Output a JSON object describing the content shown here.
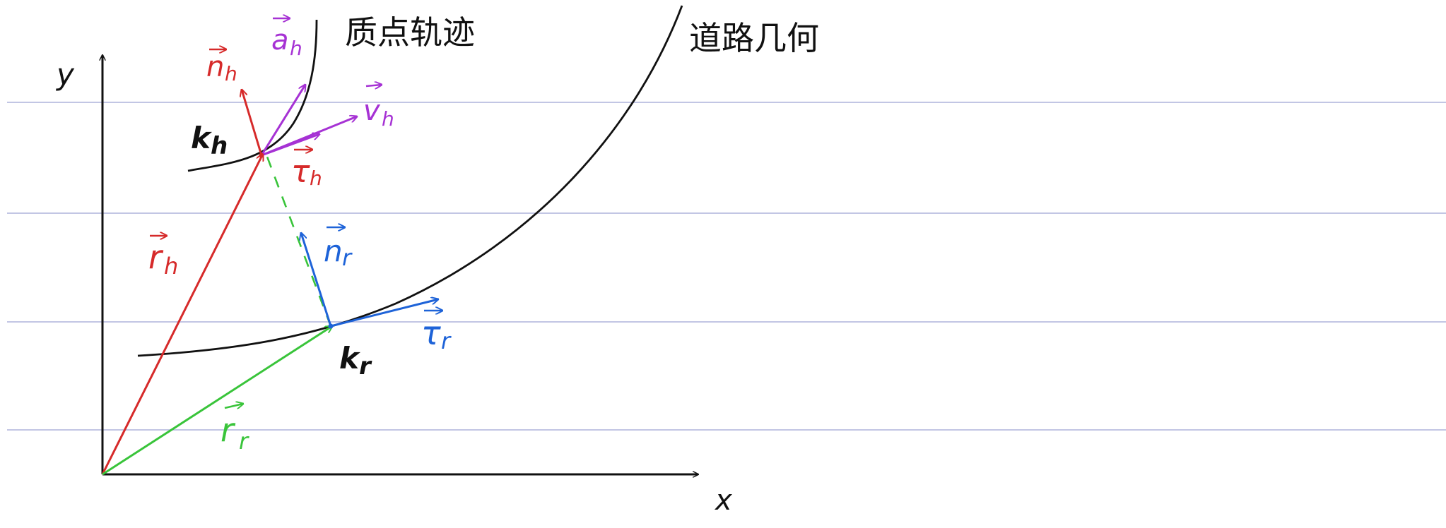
{
  "colors": {
    "background": "#ffffff",
    "ruled_line": "#aeb4dc",
    "axis": "#111111",
    "curve": "#111111",
    "host": "#d62a2a",
    "reference": "#1e63d8",
    "green": "#39c43a",
    "purple": "#a632d4"
  },
  "labels": {
    "trajectory": "质点轨迹",
    "road": "道路几何",
    "y_axis": "y",
    "x_axis": "x",
    "k_h": "k",
    "k_h_sub": "h",
    "k_r": "k",
    "k_r_sub": "r",
    "r_h": "r",
    "r_h_sub": "h",
    "r_r": "r",
    "r_r_sub": "r",
    "n_h": "n",
    "n_h_sub": "h",
    "a_h": "a",
    "a_h_sub": "h",
    "v_h": "v",
    "v_h_sub": "h",
    "tau_h": "τ",
    "tau_h_sub": "h",
    "n_r": "n",
    "n_r_sub": "r",
    "tau_r": "τ",
    "tau_r_sub": "r"
  }
}
